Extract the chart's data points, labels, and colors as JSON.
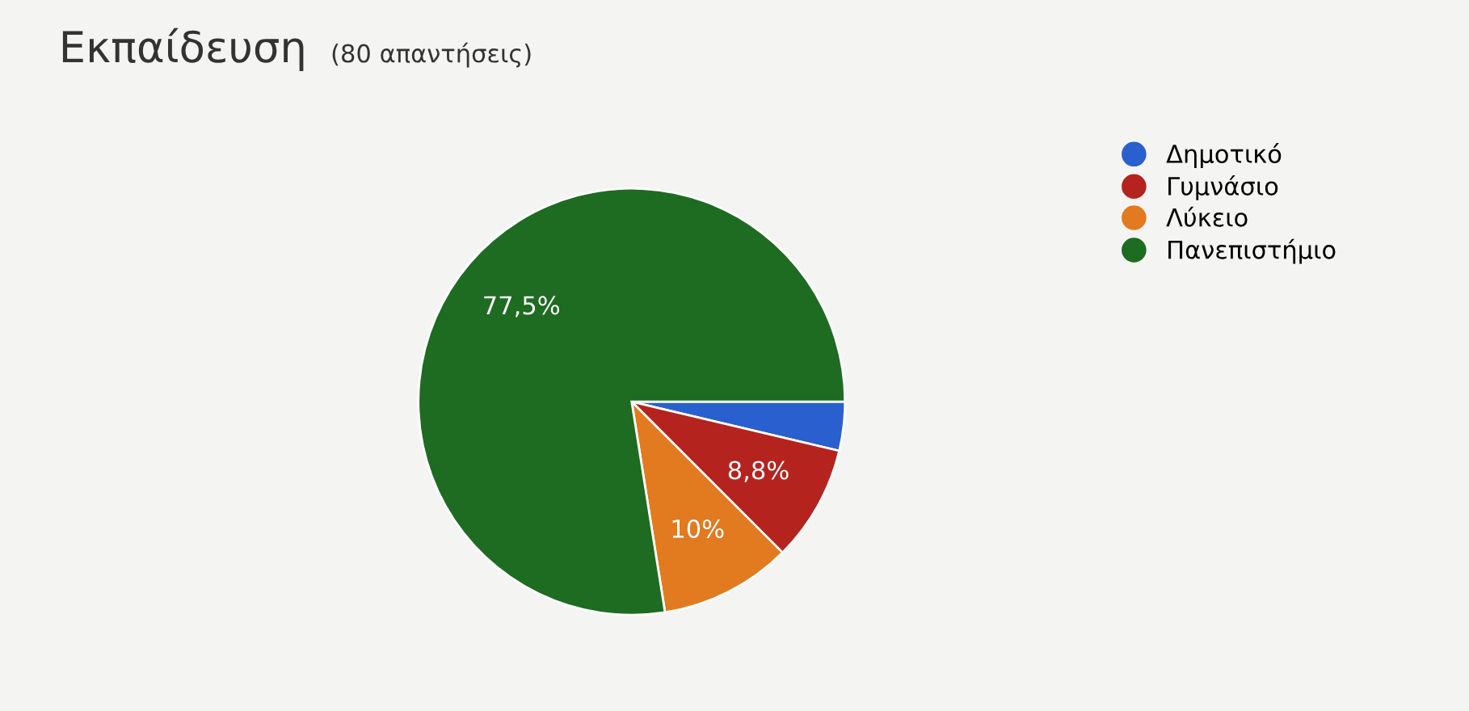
{
  "chart_data": {
    "type": "pie",
    "title": "Εκπαίδευση",
    "subtitle": "(80 απαντήσεις)",
    "categories": [
      "Δημοτικό",
      "Γυμνάσιο",
      "Λύκειο",
      "Πανεπιστήμιο"
    ],
    "values": [
      3.7,
      8.8,
      10,
      77.5
    ],
    "colors": [
      "#2a5fcf",
      "#b5231e",
      "#e27a1f",
      "#1e6b22"
    ],
    "value_labels": [
      null,
      "8,8%",
      "10%",
      "77,5%"
    ],
    "legend": "right"
  }
}
